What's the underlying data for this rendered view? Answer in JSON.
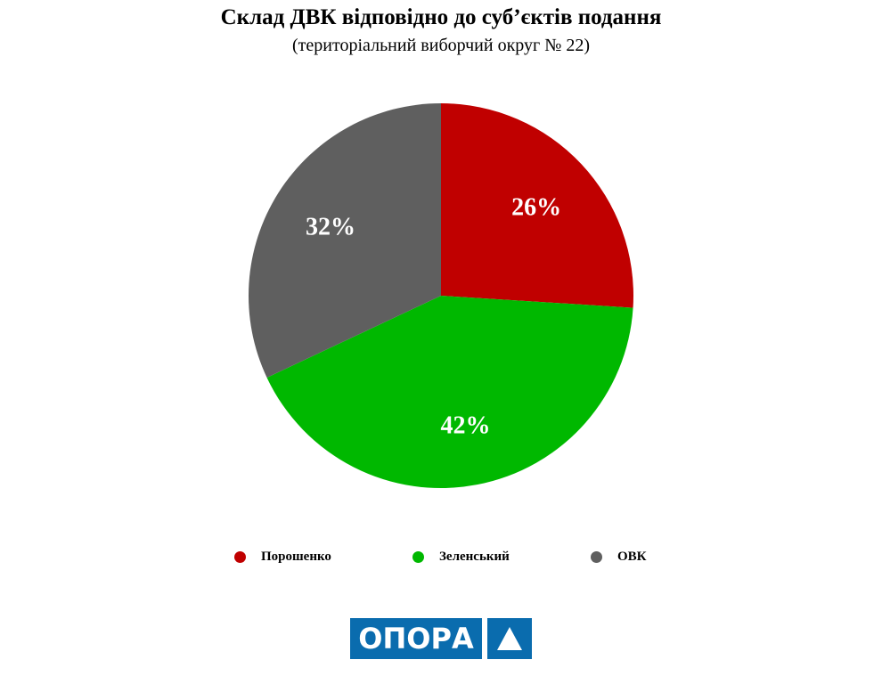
{
  "chart_data": {
    "type": "pie",
    "title": "Склад ДВК відповідно до суб’єктів подання",
    "subtitle": "(територіальний виборчий округ № 22)",
    "categories": [
      "Порошенко",
      "Зеленський",
      "ОВК"
    ],
    "values": [
      26,
      42,
      32
    ],
    "labels": [
      "26%",
      "42%",
      "32%"
    ],
    "colors": [
      "#c00000",
      "#00b800",
      "#5f5f5f"
    ],
    "legend_position": "bottom"
  },
  "logo": {
    "text": "ОПОРА",
    "color": "#0a6cae"
  }
}
